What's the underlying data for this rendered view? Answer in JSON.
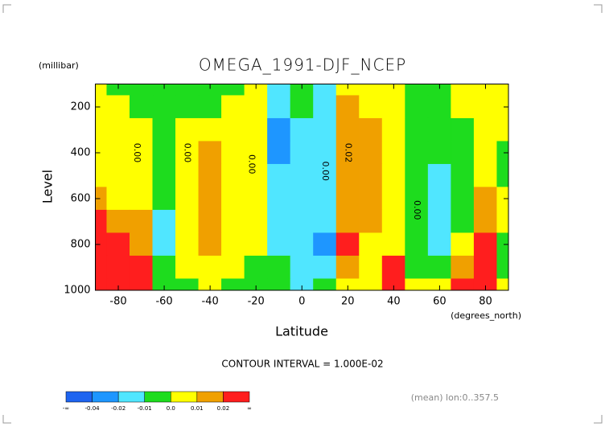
{
  "chart_data": {
    "type": "contour",
    "title": "OMEGA_1991-DJF_NCEP",
    "y_unit": "(millibar)",
    "y_label": "Level",
    "x_label": "Latitude",
    "x_unit": "(degrees_north)",
    "contour_interval": "CONTOUR INTERVAL = 1.000E-02",
    "note": "(mean) lon:0..357.5",
    "x": [
      -90,
      -80,
      -70,
      -60,
      -50,
      -40,
      -30,
      -20,
      -10,
      0,
      10,
      20,
      30,
      40,
      50,
      60,
      70,
      80,
      90
    ],
    "y": [
      100,
      200,
      300,
      400,
      500,
      600,
      700,
      800,
      900,
      1000
    ],
    "z": [
      [
        0.005,
        -0.005,
        -0.005,
        -0.005,
        -0.005,
        -0.005,
        -0.003,
        0.004,
        -0.012,
        -0.005,
        -0.012,
        0.005,
        0.005,
        0.003,
        -0.003,
        -0.005,
        0.003,
        0.005,
        0.005
      ],
      [
        0.005,
        0.005,
        -0.005,
        -0.005,
        -0.003,
        -0.002,
        0.004,
        0.004,
        -0.015,
        -0.008,
        -0.012,
        0.012,
        0.008,
        0.005,
        -0.005,
        -0.005,
        0.004,
        0.005,
        0.004
      ],
      [
        0.005,
        0.005,
        0.005,
        -0.005,
        0.003,
        0.008,
        0.006,
        0.004,
        -0.025,
        -0.015,
        -0.012,
        0.018,
        0.015,
        0.005,
        -0.005,
        -0.005,
        -0.003,
        0.006,
        0.004
      ],
      [
        0.005,
        0.005,
        0.003,
        -0.005,
        0.005,
        0.012,
        0.006,
        0.004,
        -0.025,
        -0.015,
        -0.012,
        0.018,
        0.015,
        0.005,
        -0.005,
        -0.008,
        -0.005,
        0.006,
        -0.003
      ],
      [
        0.005,
        0.005,
        0.005,
        -0.005,
        0.005,
        0.014,
        0.007,
        0.004,
        -0.018,
        -0.015,
        -0.012,
        0.018,
        0.015,
        0.005,
        -0.005,
        -0.015,
        -0.005,
        0.007,
        -0.003
      ],
      [
        0.012,
        0.008,
        0.008,
        -0.005,
        0.005,
        0.014,
        0.007,
        0.004,
        -0.015,
        -0.015,
        -0.012,
        0.018,
        0.015,
        0.005,
        -0.005,
        -0.015,
        -0.005,
        0.012,
        0.005
      ],
      [
        0.025,
        0.015,
        0.012,
        -0.015,
        0.005,
        0.013,
        0.006,
        0.004,
        -0.015,
        -0.015,
        -0.015,
        0.018,
        0.015,
        0.005,
        -0.005,
        -0.015,
        -0.005,
        0.014,
        0.008
      ],
      [
        0.025,
        0.025,
        0.015,
        -0.015,
        0.005,
        0.011,
        0.005,
        0.001,
        -0.012,
        -0.015,
        -0.025,
        0.022,
        0.008,
        0.008,
        -0.005,
        -0.015,
        0.005,
        0.022,
        -0.003
      ],
      [
        0.025,
        0.025,
        0.025,
        -0.005,
        0.003,
        0.005,
        0.003,
        -0.003,
        -0.008,
        -0.015,
        -0.015,
        0.012,
        0.005,
        0.022,
        -0.005,
        -0.005,
        0.015,
        0.025,
        -0.003
      ],
      [
        0.025,
        0.025,
        0.025,
        -0.005,
        -0.005,
        0.003,
        -0.003,
        -0.005,
        -0.005,
        -0.012,
        -0.008,
        0.005,
        0.005,
        0.022,
        0.003,
        0.005,
        0.025,
        0.022,
        0.003
      ]
    ],
    "xlim": [
      -90,
      90
    ],
    "xticks": [
      -80,
      -60,
      -40,
      -20,
      0,
      20,
      40,
      60,
      80
    ],
    "ylim": [
      1000,
      100
    ],
    "yticks": [
      1000,
      800,
      600,
      400,
      200
    ],
    "annotations": [
      {
        "text": "0.00",
        "x": -72,
        "y": 400
      },
      {
        "text": "0.00",
        "x": -50,
        "y": 400
      },
      {
        "text": "0.00",
        "x": -22,
        "y": 450
      },
      {
        "text": "0.00",
        "x": 10,
        "y": 480
      },
      {
        "text": "0.02",
        "x": 20,
        "y": 400
      },
      {
        "text": "0.00",
        "x": 50,
        "y": 650
      }
    ],
    "colorbar": {
      "ticks": [
        {
          "label": "-∞"
        },
        -0.04,
        -0.02,
        -0.01,
        {
          "value": 0,
          "label": "0.0"
        },
        0.01,
        0.02,
        {
          "label": "∞"
        }
      ],
      "colors": [
        "#1e64f0",
        "#1e96ff",
        "#50e6ff",
        "#1edc1e",
        "#ffff00",
        "#f0a000",
        "#ff1e1e"
      ]
    }
  }
}
